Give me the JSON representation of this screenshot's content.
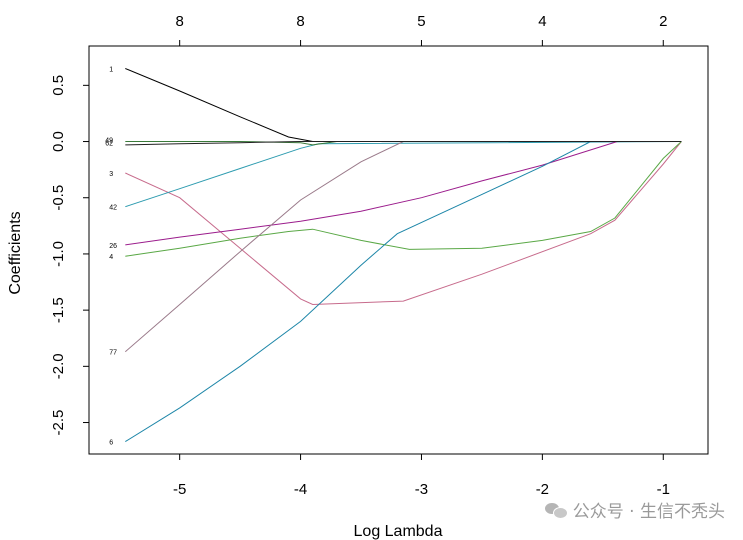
{
  "chart_data": {
    "type": "line",
    "title": "",
    "xlabel": "Log Lambda",
    "ylabel": "Coefficients",
    "xlim": [
      -5.75,
      -0.63
    ],
    "ylim": [
      -2.78,
      0.85
    ],
    "xticks": [
      -5,
      -4,
      -3,
      -2,
      -1
    ],
    "yticks": [
      0.5,
      0.0,
      -0.5,
      -1.0,
      -1.5,
      -2.0,
      -2.5
    ],
    "top_axis": {
      "positions": [
        -5,
        -4,
        -3,
        -2,
        -1
      ],
      "labels": [
        "8",
        "8",
        "5",
        "4",
        "2"
      ]
    },
    "grid": false,
    "series": [
      {
        "label": "1",
        "color": "#000000",
        "x": [
          -5.45,
          -5.0,
          -4.5,
          -4.1,
          -3.9,
          -0.85
        ],
        "y": [
          0.65,
          0.45,
          0.22,
          0.04,
          0.0,
          0.0
        ]
      },
      {
        "label": "3",
        "color": "#c76b8c",
        "x": [
          -5.45,
          -5.0,
          -4.5,
          -4.0,
          -3.9,
          -3.15,
          -2.5,
          -1.6,
          -1.4,
          -1.0,
          -0.85
        ],
        "y": [
          -0.28,
          -0.5,
          -0.95,
          -1.4,
          -1.45,
          -1.42,
          -1.18,
          -0.82,
          -0.7,
          -0.2,
          0.0
        ]
      },
      {
        "label": "42",
        "color": "#2e9cb0",
        "x": [
          -5.45,
          -5.0,
          -4.5,
          -4.0,
          -3.85,
          -0.85
        ],
        "y": [
          -0.58,
          -0.42,
          -0.24,
          -0.06,
          -0.02,
          0.0
        ]
      },
      {
        "label": "26",
        "color": "#9b1c8c",
        "x": [
          -5.45,
          -5.0,
          -4.5,
          -4.0,
          -3.5,
          -3.0,
          -2.5,
          -2.0,
          -1.38,
          -0.85
        ],
        "y": [
          -0.92,
          -0.85,
          -0.78,
          -0.71,
          -0.62,
          -0.5,
          -0.35,
          -0.21,
          0.0,
          0.0
        ]
      },
      {
        "label": "4",
        "color": "#5aa846",
        "x": [
          -5.45,
          -5.0,
          -4.5,
          -4.1,
          -3.9,
          -3.5,
          -3.1,
          -2.5,
          -2.0,
          -1.6,
          -1.4,
          -1.0,
          -0.85
        ],
        "y": [
          -1.02,
          -0.95,
          -0.86,
          -0.8,
          -0.78,
          -0.88,
          -0.96,
          -0.95,
          -0.88,
          -0.8,
          -0.68,
          -0.15,
          0.0
        ]
      },
      {
        "label": "77",
        "color": "#9a7a8a",
        "x": [
          -5.45,
          -5.0,
          -4.5,
          -4.0,
          -3.5,
          -3.15,
          -0.85
        ],
        "y": [
          -1.87,
          -1.45,
          -0.98,
          -0.52,
          -0.18,
          0.0,
          0.0
        ]
      },
      {
        "label": "6",
        "color": "#1d86a8",
        "x": [
          -5.45,
          -5.0,
          -4.5,
          -4.0,
          -3.5,
          -3.2,
          -2.5,
          -2.0,
          -1.6,
          -0.85
        ],
        "y": [
          -2.67,
          -2.37,
          -2.0,
          -1.6,
          -1.1,
          -0.82,
          -0.47,
          -0.22,
          0.0,
          0.0
        ]
      },
      {
        "label": "",
        "color": "#3a7a3a",
        "x": [
          -5.45,
          -4.5,
          -4.0,
          -3.9,
          -3.7,
          -0.85
        ],
        "y": [
          0.0,
          0.0,
          -0.01,
          -0.03,
          0.0,
          0.0
        ]
      },
      {
        "label": "",
        "color": "#222222",
        "x": [
          -5.45,
          -5.0,
          -4.5,
          -4.0,
          -3.9,
          -0.85
        ],
        "y": [
          -0.03,
          -0.02,
          -0.01,
          0.0,
          0.0,
          0.0
        ]
      }
    ],
    "right_labels_near_zero": [
      "49",
      "62"
    ]
  },
  "watermark": {
    "text": "公众号 · 生信不秃头"
  }
}
